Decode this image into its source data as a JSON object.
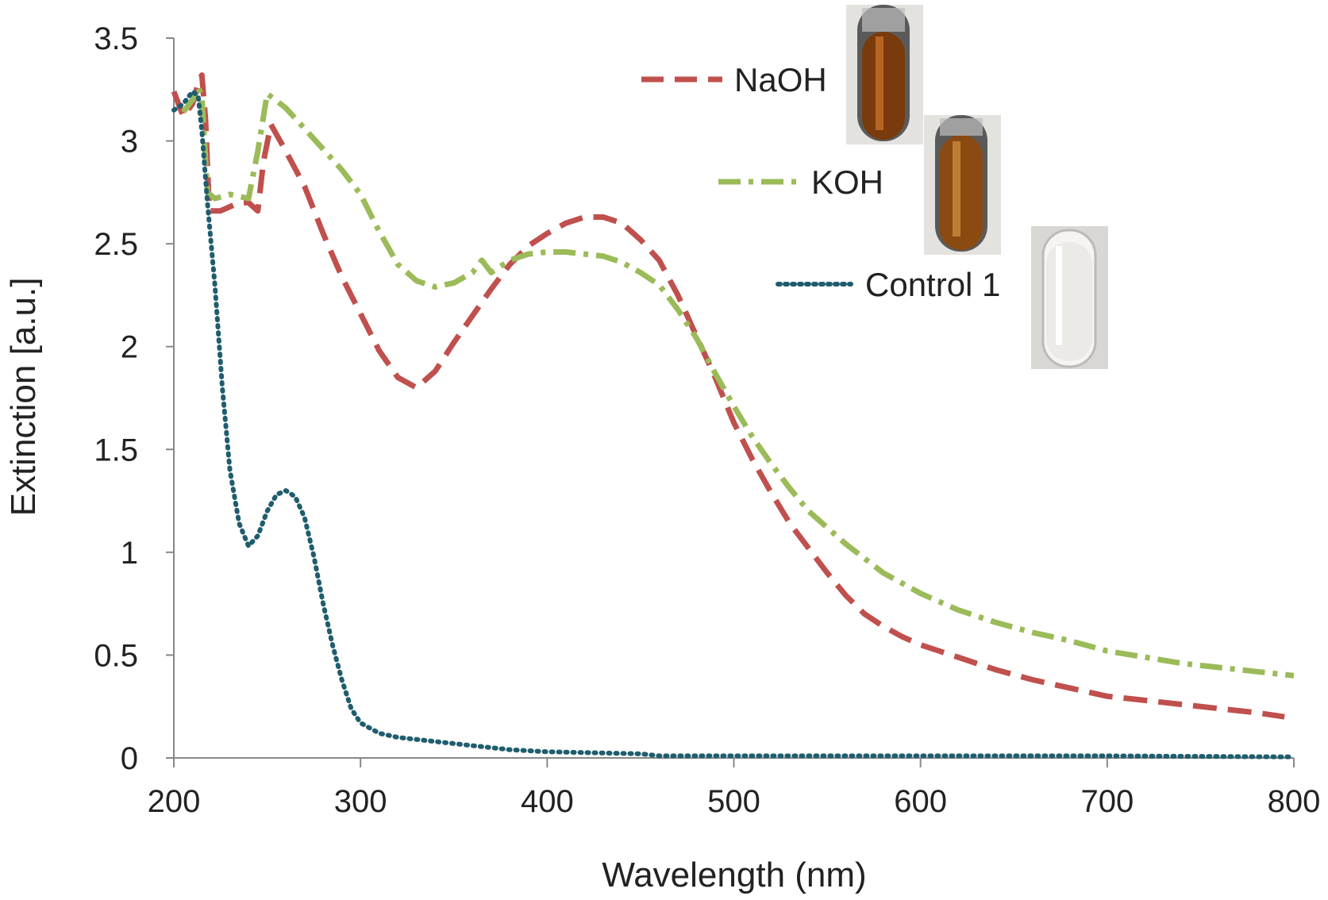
{
  "chart_data": {
    "type": "line",
    "xlabel": "Wavelength (nm)",
    "ylabel": "Extinction [a.u.]",
    "xlim": [
      200,
      800
    ],
    "ylim": [
      0,
      3.5
    ],
    "x_ticks": [
      200,
      300,
      400,
      500,
      600,
      700,
      800
    ],
    "y_ticks": [
      "0",
      "0.5",
      "1",
      "1.5",
      "2",
      "2.5",
      "3",
      "3.5"
    ],
    "grid": false,
    "legend_position": "top-right",
    "series": [
      {
        "name": "NaOH",
        "color": "#c0504d",
        "dash": "dashed",
        "points": [
          [
            200,
            3.24
          ],
          [
            205,
            3.12
          ],
          [
            210,
            3.18
          ],
          [
            213,
            3.28
          ],
          [
            215,
            3.32
          ],
          [
            217,
            3.1
          ],
          [
            219,
            2.66
          ],
          [
            225,
            2.66
          ],
          [
            235,
            2.7
          ],
          [
            240,
            2.7
          ],
          [
            245,
            2.66
          ],
          [
            248,
            2.9
          ],
          [
            252,
            3.08
          ],
          [
            260,
            2.95
          ],
          [
            270,
            2.78
          ],
          [
            280,
            2.55
          ],
          [
            290,
            2.34
          ],
          [
            300,
            2.16
          ],
          [
            310,
            1.98
          ],
          [
            320,
            1.85
          ],
          [
            330,
            1.8
          ],
          [
            340,
            1.88
          ],
          [
            350,
            2.02
          ],
          [
            360,
            2.15
          ],
          [
            370,
            2.28
          ],
          [
            380,
            2.4
          ],
          [
            390,
            2.49
          ],
          [
            400,
            2.55
          ],
          [
            410,
            2.6
          ],
          [
            420,
            2.63
          ],
          [
            430,
            2.63
          ],
          [
            440,
            2.6
          ],
          [
            450,
            2.52
          ],
          [
            460,
            2.42
          ],
          [
            470,
            2.25
          ],
          [
            480,
            2.05
          ],
          [
            490,
            1.85
          ],
          [
            500,
            1.63
          ],
          [
            510,
            1.45
          ],
          [
            520,
            1.29
          ],
          [
            530,
            1.14
          ],
          [
            540,
            1.02
          ],
          [
            550,
            0.9
          ],
          [
            560,
            0.79
          ],
          [
            570,
            0.7
          ],
          [
            580,
            0.64
          ],
          [
            590,
            0.59
          ],
          [
            600,
            0.55
          ],
          [
            620,
            0.49
          ],
          [
            640,
            0.43
          ],
          [
            660,
            0.38
          ],
          [
            680,
            0.34
          ],
          [
            700,
            0.3
          ],
          [
            720,
            0.28
          ],
          [
            740,
            0.26
          ],
          [
            760,
            0.24
          ],
          [
            780,
            0.22
          ],
          [
            795,
            0.2
          ]
        ]
      },
      {
        "name": "KOH",
        "color": "#9bbb59",
        "dash": "dash-dot",
        "points": [
          [
            205,
            3.14
          ],
          [
            210,
            3.2
          ],
          [
            213,
            3.26
          ],
          [
            215,
            3.22
          ],
          [
            218,
            2.75
          ],
          [
            222,
            2.72
          ],
          [
            230,
            2.74
          ],
          [
            240,
            2.72
          ],
          [
            245,
            2.95
          ],
          [
            250,
            3.23
          ],
          [
            260,
            3.16
          ],
          [
            270,
            3.06
          ],
          [
            280,
            2.96
          ],
          [
            290,
            2.86
          ],
          [
            300,
            2.74
          ],
          [
            310,
            2.56
          ],
          [
            320,
            2.4
          ],
          [
            330,
            2.32
          ],
          [
            340,
            2.29
          ],
          [
            350,
            2.31
          ],
          [
            360,
            2.36
          ],
          [
            365,
            2.42
          ],
          [
            370,
            2.36
          ],
          [
            380,
            2.42
          ],
          [
            390,
            2.45
          ],
          [
            400,
            2.46
          ],
          [
            410,
            2.46
          ],
          [
            420,
            2.45
          ],
          [
            430,
            2.44
          ],
          [
            440,
            2.41
          ],
          [
            450,
            2.36
          ],
          [
            460,
            2.3
          ],
          [
            470,
            2.18
          ],
          [
            480,
            2.04
          ],
          [
            490,
            1.87
          ],
          [
            500,
            1.71
          ],
          [
            510,
            1.56
          ],
          [
            520,
            1.43
          ],
          [
            530,
            1.31
          ],
          [
            540,
            1.2
          ],
          [
            550,
            1.12
          ],
          [
            560,
            1.04
          ],
          [
            570,
            0.97
          ],
          [
            580,
            0.9
          ],
          [
            590,
            0.85
          ],
          [
            600,
            0.8
          ],
          [
            620,
            0.72
          ],
          [
            640,
            0.66
          ],
          [
            660,
            0.61
          ],
          [
            680,
            0.57
          ],
          [
            700,
            0.52
          ],
          [
            720,
            0.49
          ],
          [
            740,
            0.46
          ],
          [
            760,
            0.44
          ],
          [
            780,
            0.42
          ],
          [
            800,
            0.4
          ]
        ]
      },
      {
        "name": "Control 1",
        "color": "#1f5d6e",
        "dash": "dotted",
        "points": [
          [
            200,
            3.15
          ],
          [
            205,
            3.18
          ],
          [
            210,
            3.24
          ],
          [
            213,
            3.22
          ],
          [
            215,
            3.05
          ],
          [
            218,
            2.7
          ],
          [
            222,
            2.3
          ],
          [
            226,
            1.8
          ],
          [
            230,
            1.4
          ],
          [
            235,
            1.14
          ],
          [
            240,
            1.03
          ],
          [
            245,
            1.08
          ],
          [
            250,
            1.2
          ],
          [
            255,
            1.28
          ],
          [
            260,
            1.3
          ],
          [
            265,
            1.27
          ],
          [
            270,
            1.17
          ],
          [
            275,
            0.98
          ],
          [
            280,
            0.75
          ],
          [
            285,
            0.55
          ],
          [
            290,
            0.38
          ],
          [
            295,
            0.24
          ],
          [
            300,
            0.17
          ],
          [
            310,
            0.12
          ],
          [
            320,
            0.1
          ],
          [
            340,
            0.08
          ],
          [
            360,
            0.06
          ],
          [
            380,
            0.04
          ],
          [
            400,
            0.03
          ],
          [
            450,
            0.02
          ],
          [
            460,
            0.01
          ],
          [
            500,
            0.01
          ],
          [
            600,
            0.01
          ],
          [
            700,
            0.01
          ],
          [
            800,
            0.005
          ]
        ]
      }
    ]
  },
  "legend": {
    "items": [
      {
        "label": "NaOH",
        "color": "#c0504d"
      },
      {
        "label": "KOH",
        "color": "#9bbb59"
      },
      {
        "label": "Control 1",
        "color": "#1f5d6e"
      }
    ]
  },
  "vials": [
    {
      "name": "naoh-vial-photo",
      "liquid_color": "#7a3b0c"
    },
    {
      "name": "koh-vial-photo",
      "liquid_color": "#8a4a12"
    },
    {
      "name": "control-vial-photo",
      "liquid_color": "#e8e6e2"
    }
  ]
}
